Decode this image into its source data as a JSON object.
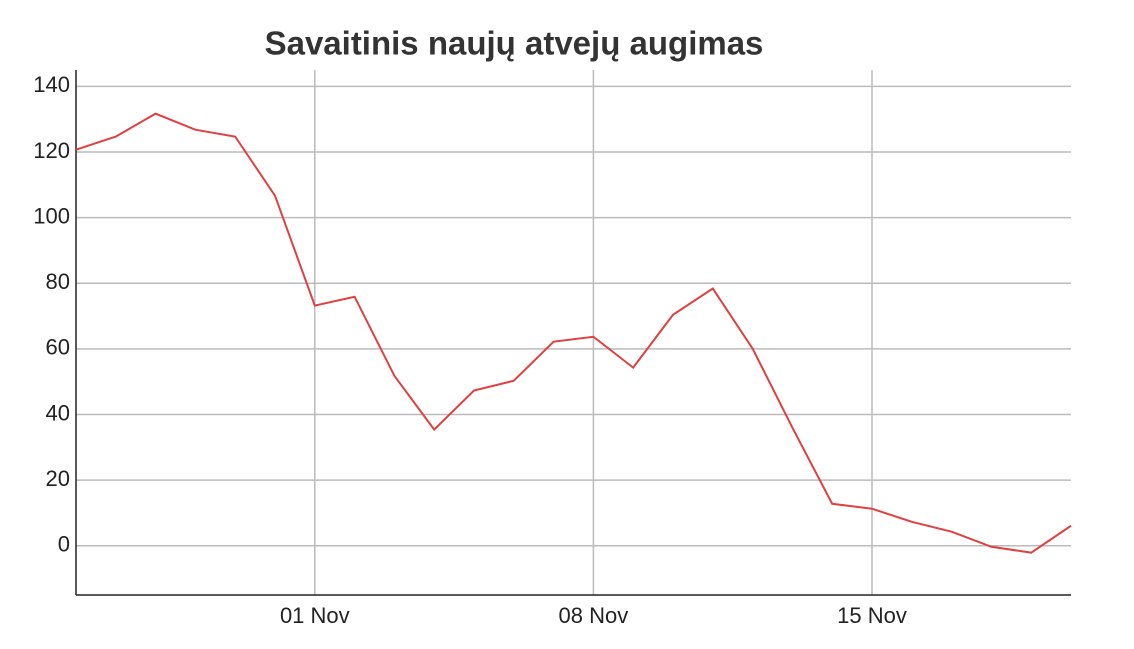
{
  "chart_data": {
    "type": "line",
    "title": "Savaitinis naujų atvejų augimas",
    "x": [
      "26 Oct",
      "27 Oct",
      "28 Oct",
      "29 Oct",
      "30 Oct",
      "31 Oct",
      "01 Nov",
      "02 Nov",
      "03 Nov",
      "04 Nov",
      "05 Nov",
      "06 Nov",
      "07 Nov",
      "08 Nov",
      "09 Nov",
      "10 Nov",
      "11 Nov",
      "12 Nov",
      "13 Nov",
      "14 Nov",
      "15 Nov",
      "16 Nov",
      "17 Nov",
      "18 Nov",
      "19 Nov",
      "20 Nov"
    ],
    "series": [
      {
        "color": "#e04040",
        "values": [
          120.7,
          124.7,
          131.7,
          126.8,
          124.7,
          106.7,
          73.2,
          75.9,
          51.8,
          35.4,
          47.3,
          50.3,
          62.2,
          63.7,
          54.3,
          70.4,
          78.4,
          60.1,
          36.0,
          12.8,
          11.3,
          7.3,
          4.3,
          -0.3,
          -2.1,
          6.1
        ]
      }
    ],
    "xticks": [
      "01 Nov",
      "08 Nov",
      "15 Nov"
    ],
    "ylim": [
      -15,
      145
    ],
    "yticks": [
      0,
      20,
      40,
      60,
      80,
      100,
      120,
      140
    ],
    "grid": true
  }
}
